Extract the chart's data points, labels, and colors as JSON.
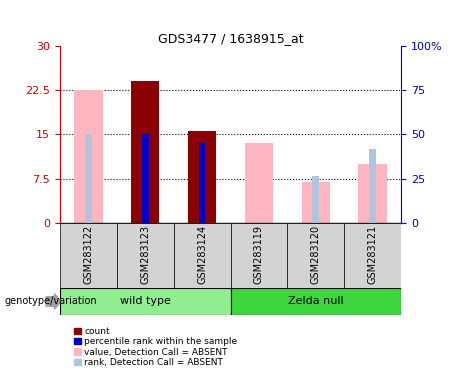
{
  "title": "GDS3477 / 1638915_at",
  "categories": [
    "GSM283122",
    "GSM283123",
    "GSM283124",
    "GSM283119",
    "GSM283120",
    "GSM283121"
  ],
  "group_names": [
    "wild type",
    "Zelda null"
  ],
  "group_colors": [
    "#90ee90",
    "#3dd63d"
  ],
  "group_ranges": [
    [
      0,
      2
    ],
    [
      3,
      5
    ]
  ],
  "ylim_left": [
    0,
    30
  ],
  "ylim_right": [
    0,
    100
  ],
  "yticks_left": [
    0,
    7.5,
    15,
    22.5,
    30
  ],
  "yticks_right": [
    0,
    25,
    50,
    75,
    100
  ],
  "count_values": [
    0,
    24.0,
    15.5,
    0,
    0,
    0
  ],
  "percentile_values": [
    0,
    15.0,
    13.5,
    0,
    0,
    0
  ],
  "absent_value_values": [
    22.5,
    0,
    15.5,
    13.5,
    7.0,
    10.0
  ],
  "absent_rank_values": [
    15.0,
    0,
    0,
    0,
    8.0,
    12.5
  ],
  "count_color": "#8B0000",
  "percentile_color": "#0000CD",
  "absent_value_color": "#FFB6C1",
  "absent_rank_color": "#B0C4DE",
  "legend_items": [
    "count",
    "percentile rank within the sample",
    "value, Detection Call = ABSENT",
    "rank, Detection Call = ABSENT"
  ],
  "legend_colors": [
    "#8B0000",
    "#0000CD",
    "#FFB6C1",
    "#B0C4DE"
  ],
  "genotype_label": "genotype/variation",
  "bar_width": 0.5,
  "narrow_bar_width": 0.12,
  "background_color": "#ffffff",
  "tick_label_color_left": "#cc0000",
  "tick_label_color_right": "#0000cc",
  "grid_dotted_vals": [
    7.5,
    15,
    22.5
  ]
}
